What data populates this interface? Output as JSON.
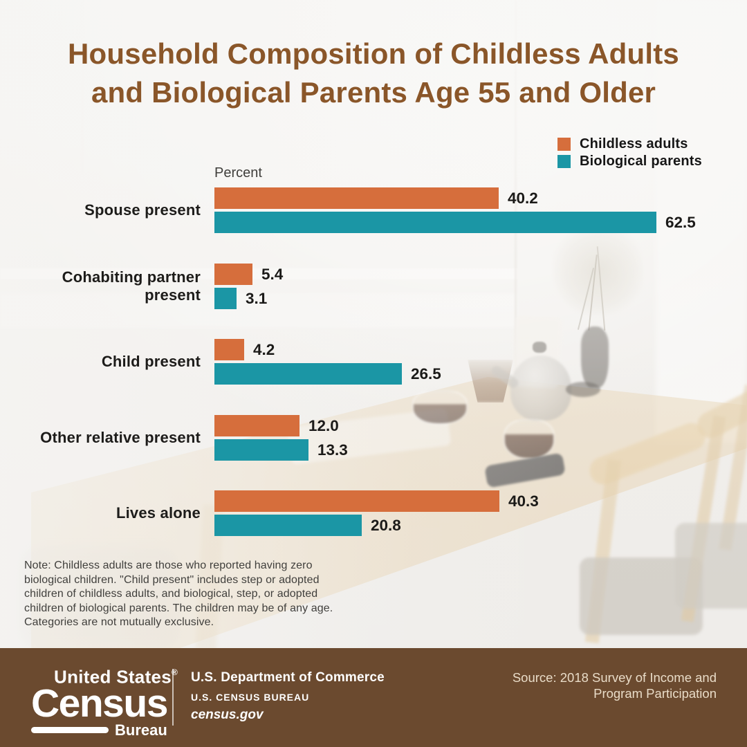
{
  "title": {
    "line1": "Household Composition of Childless Adults",
    "line2": "and Biological Parents Age 55 and Older"
  },
  "colors": {
    "title_brown": "#8a5629",
    "footer_brown": "#6b4a2f",
    "childless_orange": "#d66e3c",
    "biological_teal": "#1b96a5"
  },
  "chart_data": {
    "type": "bar",
    "orientation": "horizontal",
    "title": "Household Composition of Childless Adults and Biological Parents Age 55 and Older",
    "value_axis_label": "Percent",
    "categories": [
      "Spouse present",
      "Cohabiting partner present",
      "Child present",
      "Other relative present",
      "Lives alone"
    ],
    "series": [
      {
        "name": "Childless adults",
        "color": "#d66e3c",
        "values": [
          40.2,
          5.4,
          4.2,
          12.0,
          40.3
        ]
      },
      {
        "name": "Biological parents",
        "color": "#1b96a5",
        "values": [
          62.5,
          3.1,
          26.5,
          13.3,
          20.8
        ]
      }
    ],
    "xlim": [
      0,
      66
    ],
    "grid": false,
    "value_labels": true,
    "legend_position": "top-right"
  },
  "note": "Note: Childless adults are those who reported having zero\nbiological children. \"Child present\" includes step or adopted\nchildren of childless adults, and biological, step, or adopted\nchildren of biological parents. The children may be of any age.\nCategories are not mutually exclusive.",
  "footer": {
    "logo": {
      "united_states": "United States",
      "registered": "®",
      "census": "Census",
      "bureau": "Bureau"
    },
    "department": "U.S. Department of Commerce",
    "bureau_caps": "U.S. CENSUS BUREAU",
    "website": "census.gov",
    "source_line1": "Source: 2018 Survey of Income and",
    "source_line2": "Program Participation"
  }
}
